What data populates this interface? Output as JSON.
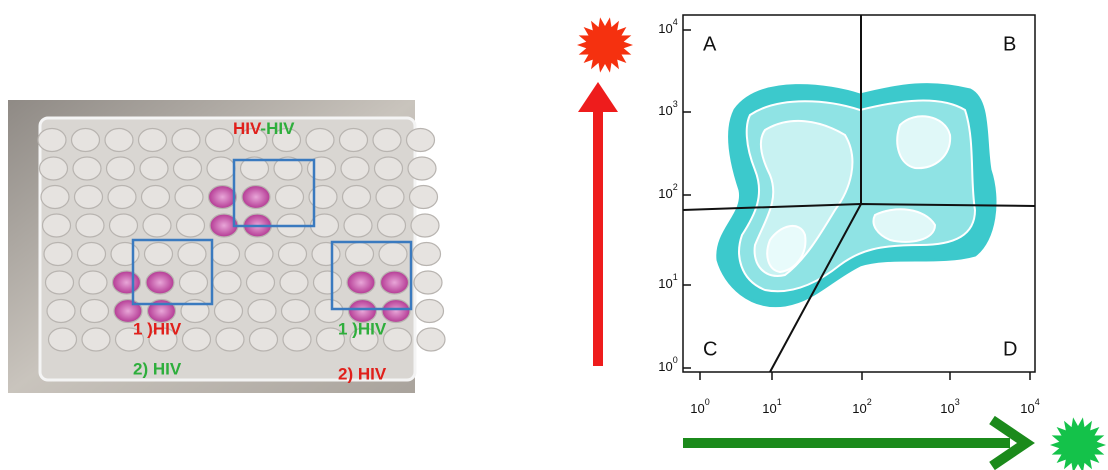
{
  "photo": {
    "top_label": [
      "HIV",
      "-HIV"
    ],
    "left_group": {
      "line1": "1 )HIV",
      "line2": "2) HIV"
    },
    "right_group": {
      "line1": "1 )HIV",
      "line2": "2) HIV"
    }
  },
  "plot": {
    "quadrants": [
      "A",
      "B",
      "C",
      "D"
    ],
    "y_ticks": [
      {
        "base": "10",
        "exp": "4"
      },
      {
        "base": "10",
        "exp": "3"
      },
      {
        "base": "10",
        "exp": "2"
      },
      {
        "base": "10",
        "exp": "1"
      },
      {
        "base": "10",
        "exp": "0"
      }
    ],
    "x_ticks": [
      {
        "base": "10",
        "exp": "0"
      },
      {
        "base": "10",
        "exp": "1"
      },
      {
        "base": "10",
        "exp": "2"
      },
      {
        "base": "10",
        "exp": "3"
      },
      {
        "base": "10",
        "exp": "4"
      }
    ]
  }
}
